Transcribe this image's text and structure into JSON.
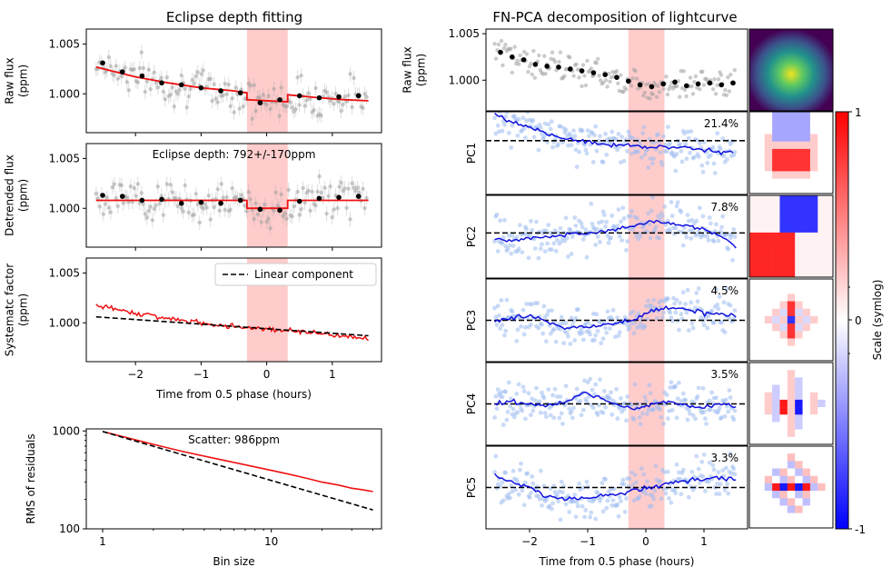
{
  "figure": {
    "left_title": "Eclipse depth fitting",
    "right_title": "FN-PCA decomposition of lightcurve"
  },
  "colors": {
    "eclipse_band": "#ff9999",
    "raw_points": "#a0a0a0",
    "binned_points": "#000000",
    "model_line": "#ee1111",
    "pc_points": "#9dbcf0",
    "pc_line": "#1010dd",
    "dashed": "#000000"
  },
  "chart_data": [
    {
      "id": "raw",
      "type": "scatter",
      "ylabel": "Raw flux\n(ppm)",
      "xlim": [
        -2.75,
        1.75
      ],
      "ylim": [
        0.9961,
        1.0065
      ],
      "yticks": [
        1.0,
        1.005
      ],
      "ytick_labels": [
        "1.000",
        "1.005"
      ],
      "xticks": [
        -2,
        -1,
        0,
        1
      ],
      "xtick_labels": [],
      "eclipse_span": [
        -0.3,
        0.32
      ],
      "binned": {
        "x": [
          -2.5,
          -2.2,
          -1.9,
          -1.6,
          -1.3,
          -1.0,
          -0.7,
          -0.4,
          -0.1,
          0.2,
          0.5,
          0.8,
          1.1,
          1.4
        ],
        "y": [
          1.0031,
          1.0022,
          1.0018,
          1.0011,
          1.0009,
          1.0006,
          1.0003,
          1.0001,
          0.9991,
          0.9994,
          0.9998,
          0.9996,
          0.9997,
          0.9998
        ]
      },
      "model": {
        "x": [
          -2.6,
          -2.0,
          -1.5,
          -1.0,
          -0.5,
          -0.3,
          -0.3,
          0.32,
          0.32,
          0.8,
          1.2,
          1.55
        ],
        "y": [
          1.0027,
          1.0017,
          1.0011,
          1.0006,
          1.0003,
          1.0001,
          0.9994,
          0.9992,
          0.9999,
          0.9996,
          0.9994,
          0.9993
        ]
      }
    },
    {
      "id": "detrended",
      "type": "scatter",
      "ylabel": "Detrended flux\n(ppm)",
      "annotation": "Eclipse depth: 792+/-170ppm",
      "xlim": [
        -2.75,
        1.75
      ],
      "ylim": [
        0.9961,
        1.0065
      ],
      "yticks": [
        1.0,
        1.005
      ],
      "ytick_labels": [
        "1.000",
        "1.005"
      ],
      "xticks": [
        -2,
        -1,
        0,
        1
      ],
      "xtick_labels": [],
      "eclipse_span": [
        -0.3,
        0.32
      ],
      "binned": {
        "x": [
          -2.5,
          -2.2,
          -1.9,
          -1.6,
          -1.3,
          -1.0,
          -0.7,
          -0.4,
          -0.1,
          0.2,
          0.5,
          0.8,
          1.1,
          1.4
        ],
        "y": [
          1.0013,
          1.0012,
          1.0008,
          1.0009,
          1.0005,
          1.0006,
          1.0005,
          1.0008,
          0.9999,
          0.9998,
          1.0007,
          1.001,
          1.0011,
          1.0012
        ]
      },
      "model": {
        "x": [
          -2.6,
          -0.3,
          -0.3,
          0.32,
          0.32,
          1.55
        ],
        "y": [
          1.0008,
          1.0008,
          1.0,
          1.0,
          1.0008,
          1.0008
        ]
      }
    },
    {
      "id": "systematic",
      "type": "line",
      "ylabel": "Systematc factor\n(ppm)",
      "xlabel": "Time from 0.5 phase (hours)",
      "legend": "Linear component",
      "legend_position": "top-right",
      "xlim": [
        -2.75,
        1.75
      ],
      "ylim": [
        0.9961,
        1.0065
      ],
      "yticks": [
        1.0,
        1.005
      ],
      "ytick_labels": [
        "1.000",
        "1.005"
      ],
      "xticks": [
        -2,
        -1,
        0,
        1
      ],
      "xtick_labels": [
        "−2",
        "−1",
        "0",
        "1"
      ],
      "eclipse_span": [
        -0.3,
        0.32
      ],
      "series": [
        {
          "x": [
            -2.6,
            -2.2,
            -1.8,
            -1.4,
            -1.0,
            -0.6,
            -0.2,
            0.2,
            0.6,
            1.0,
            1.3,
            1.55
          ],
          "y": [
            1.0018,
            1.0012,
            1.0008,
            1.0003,
            1.0,
            0.9997,
            0.9995,
            0.9993,
            0.9991,
            0.9988,
            0.9986,
            0.9985
          ]
        },
        {
          "x": [
            -2.6,
            1.55
          ],
          "y": [
            1.0006,
            0.9987
          ]
        }
      ]
    },
    {
      "id": "rms",
      "type": "line",
      "ylabel": "RMS of residuals",
      "xlabel": "Bin size",
      "annotation": "Scatter: 986ppm",
      "x_scale": "log",
      "y_scale": "log",
      "xlim": [
        0.8,
        45
      ],
      "ylim": [
        100,
        1050
      ],
      "xticks": [
        1,
        10
      ],
      "xtick_labels": [
        "1",
        "10"
      ],
      "yticks": [
        100,
        1000
      ],
      "ytick_labels": [
        "100",
        "1000"
      ],
      "series": [
        {
          "x": [
            1,
            2,
            3,
            5,
            8,
            12,
            16,
            20,
            25,
            30,
            35,
            40
          ],
          "y": [
            986,
            730,
            615,
            510,
            430,
            370,
            330,
            300,
            280,
            260,
            250,
            240
          ]
        },
        {
          "x": [
            1,
            40
          ],
          "y": [
            986,
            156
          ]
        }
      ]
    },
    {
      "id": "fnpca_raw",
      "type": "scatter",
      "ylabel": "Raw flux\n(ppm)",
      "xlim": [
        -2.75,
        1.75
      ],
      "ylim": [
        0.9967,
        1.0055
      ],
      "yticks": [
        1.0,
        1.005
      ],
      "ytick_labels": [
        "1.000",
        "1.005"
      ],
      "eclipse_span": [
        -0.3,
        0.32
      ],
      "binned": {
        "x": [
          -2.5,
          -2.3,
          -2.1,
          -1.9,
          -1.7,
          -1.5,
          -1.3,
          -1.1,
          -0.9,
          -0.7,
          -0.5,
          -0.3,
          -0.1,
          0.1,
          0.3,
          0.5,
          0.7,
          0.9,
          1.1,
          1.3,
          1.5
        ],
        "y": [
          1.003,
          1.0025,
          1.0022,
          1.0017,
          1.0015,
          1.0014,
          1.0012,
          1.001,
          1.0008,
          1.0006,
          1.0003,
          0.9999,
          0.9995,
          0.9993,
          0.9996,
          0.9998,
          0.9994,
          0.9996,
          0.9997,
          0.9995,
          0.9997
        ]
      }
    },
    {
      "id": "pc1",
      "type": "line",
      "ylabel": "PC1",
      "variance_label": "21.4%",
      "xlim": [
        -2.75,
        1.75
      ],
      "ylim": [
        -2.6,
        1.4
      ],
      "eclipse_span": [
        -0.3,
        0.32
      ],
      "series": [
        {
          "x": [
            -2.6,
            -2.4,
            -2.1,
            -1.8,
            -1.5,
            -1.2,
            -0.9,
            -0.6,
            -0.3,
            0.0,
            0.3,
            0.6,
            0.9,
            1.2,
            1.5
          ],
          "y": [
            1.3,
            1.0,
            0.7,
            0.4,
            0.2,
            0.0,
            -0.1,
            -0.2,
            -0.2,
            -0.3,
            -0.3,
            -0.3,
            -0.4,
            -0.5,
            -0.6
          ]
        }
      ]
    },
    {
      "id": "pc2",
      "type": "line",
      "ylabel": "PC2",
      "variance_label": "7.8%",
      "xlim": [
        -2.75,
        1.75
      ],
      "ylim": [
        -2.4,
        2.0
      ],
      "eclipse_span": [
        -0.3,
        0.32
      ],
      "series": [
        {
          "x": [
            -2.6,
            -2.3,
            -2.0,
            -1.7,
            -1.4,
            -1.1,
            -0.8,
            -0.5,
            -0.2,
            0.1,
            0.4,
            0.7,
            1.0,
            1.3,
            1.55
          ],
          "y": [
            -0.3,
            -0.4,
            -0.3,
            -0.2,
            -0.1,
            0.0,
            0.1,
            0.2,
            0.4,
            0.6,
            0.5,
            0.4,
            0.2,
            -0.2,
            -0.7
          ]
        }
      ]
    },
    {
      "id": "pc3",
      "type": "line",
      "ylabel": "PC3",
      "variance_label": "4.5%",
      "xlim": [
        -2.75,
        1.75
      ],
      "ylim": [
        -1.8,
        1.8
      ],
      "eclipse_span": [
        -0.3,
        0.32
      ],
      "series": [
        {
          "x": [
            -2.6,
            -2.3,
            -2.0,
            -1.7,
            -1.4,
            -1.1,
            -0.8,
            -0.5,
            -0.2,
            0.1,
            0.4,
            0.7,
            1.0,
            1.3,
            1.55
          ],
          "y": [
            0.0,
            0.1,
            0.2,
            -0.1,
            -0.3,
            -0.3,
            -0.2,
            -0.1,
            0.0,
            0.4,
            0.6,
            0.5,
            0.3,
            0.3,
            0.2
          ]
        }
      ]
    },
    {
      "id": "pc4",
      "type": "line",
      "ylabel": "PC4",
      "variance_label": "3.5%",
      "xlim": [
        -2.75,
        1.75
      ],
      "ylim": [
        -1.8,
        1.8
      ],
      "eclipse_span": [
        -0.3,
        0.32
      ],
      "series": [
        {
          "x": [
            -2.6,
            -2.3,
            -2.0,
            -1.7,
            -1.4,
            -1.1,
            -0.8,
            -0.5,
            -0.2,
            0.1,
            0.4,
            0.7,
            1.0,
            1.3,
            1.55
          ],
          "y": [
            0.0,
            0.1,
            0.0,
            -0.1,
            0.1,
            0.4,
            0.3,
            0.0,
            -0.2,
            0.0,
            0.1,
            -0.1,
            -0.2,
            0.0,
            -0.1
          ]
        }
      ]
    },
    {
      "id": "pc5",
      "type": "line",
      "ylabel": "PC5",
      "variance_label": "3.3%",
      "xtick_labels": [
        "−2",
        "−1",
        "0",
        "1"
      ],
      "xlabel": "Time from 0.5 phase (hours)",
      "xticks": [
        -2,
        -1,
        0,
        1
      ],
      "xlim": [
        -2.75,
        1.75
      ],
      "ylim": [
        -1.8,
        1.8
      ],
      "eclipse_span": [
        -0.3,
        0.32
      ],
      "series": [
        {
          "x": [
            -2.6,
            -2.3,
            -2.0,
            -1.7,
            -1.4,
            -1.1,
            -0.8,
            -0.5,
            -0.2,
            0.1,
            0.4,
            0.7,
            1.0,
            1.3,
            1.55
          ],
          "y": [
            0.5,
            0.2,
            0.0,
            -0.4,
            -0.5,
            -0.5,
            -0.4,
            -0.3,
            -0.1,
            0.0,
            0.2,
            0.3,
            0.4,
            0.4,
            0.4
          ]
        }
      ]
    },
    {
      "id": "colorbar",
      "type": "heatmap",
      "label": "Scale (symlog)",
      "ticks": [
        "1",
        "0",
        "-1"
      ],
      "colormap": [
        "#0000ff",
        "#ffffff",
        "#ff0000"
      ]
    }
  ]
}
